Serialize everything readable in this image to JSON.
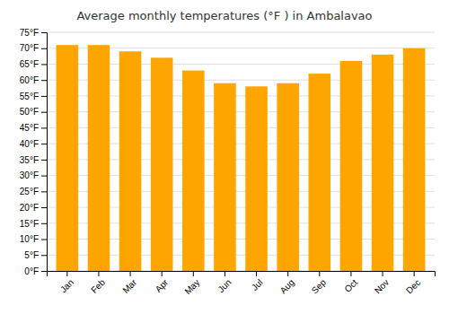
{
  "chart_data": {
    "type": "bar",
    "title": "Average monthly temperatures (°F ) in Ambalavao",
    "categories": [
      "Jan",
      "Feb",
      "Mar",
      "Apr",
      "May",
      "Jun",
      "Jul",
      "Aug",
      "Sep",
      "Oct",
      "Nov",
      "Dec"
    ],
    "values": [
      71,
      71,
      69,
      67,
      63,
      59,
      58,
      59,
      62,
      66,
      68,
      70
    ],
    "color": "#FFA500",
    "ylim": [
      0,
      75
    ],
    "yticks": [
      {
        "value": 0,
        "label": "0°F"
      },
      {
        "value": 5,
        "label": "5°F"
      },
      {
        "value": 10,
        "label": "10°F"
      },
      {
        "value": 15,
        "label": "15°F"
      },
      {
        "value": 20,
        "label": "20°F"
      },
      {
        "value": 25,
        "label": "25°F"
      },
      {
        "value": 30,
        "label": "30°F"
      },
      {
        "value": 35,
        "label": "35°F"
      },
      {
        "value": 40,
        "label": "40°F"
      },
      {
        "value": 45,
        "label": "45°F"
      },
      {
        "value": 50,
        "label": "50°F"
      },
      {
        "value": 55,
        "label": "55°F"
      },
      {
        "value": 60,
        "label": "60°F"
      },
      {
        "value": 65,
        "label": "65°F"
      },
      {
        "value": 70,
        "label": "70°F"
      },
      {
        "value": 75,
        "label": "75°F"
      }
    ],
    "grid": true
  }
}
